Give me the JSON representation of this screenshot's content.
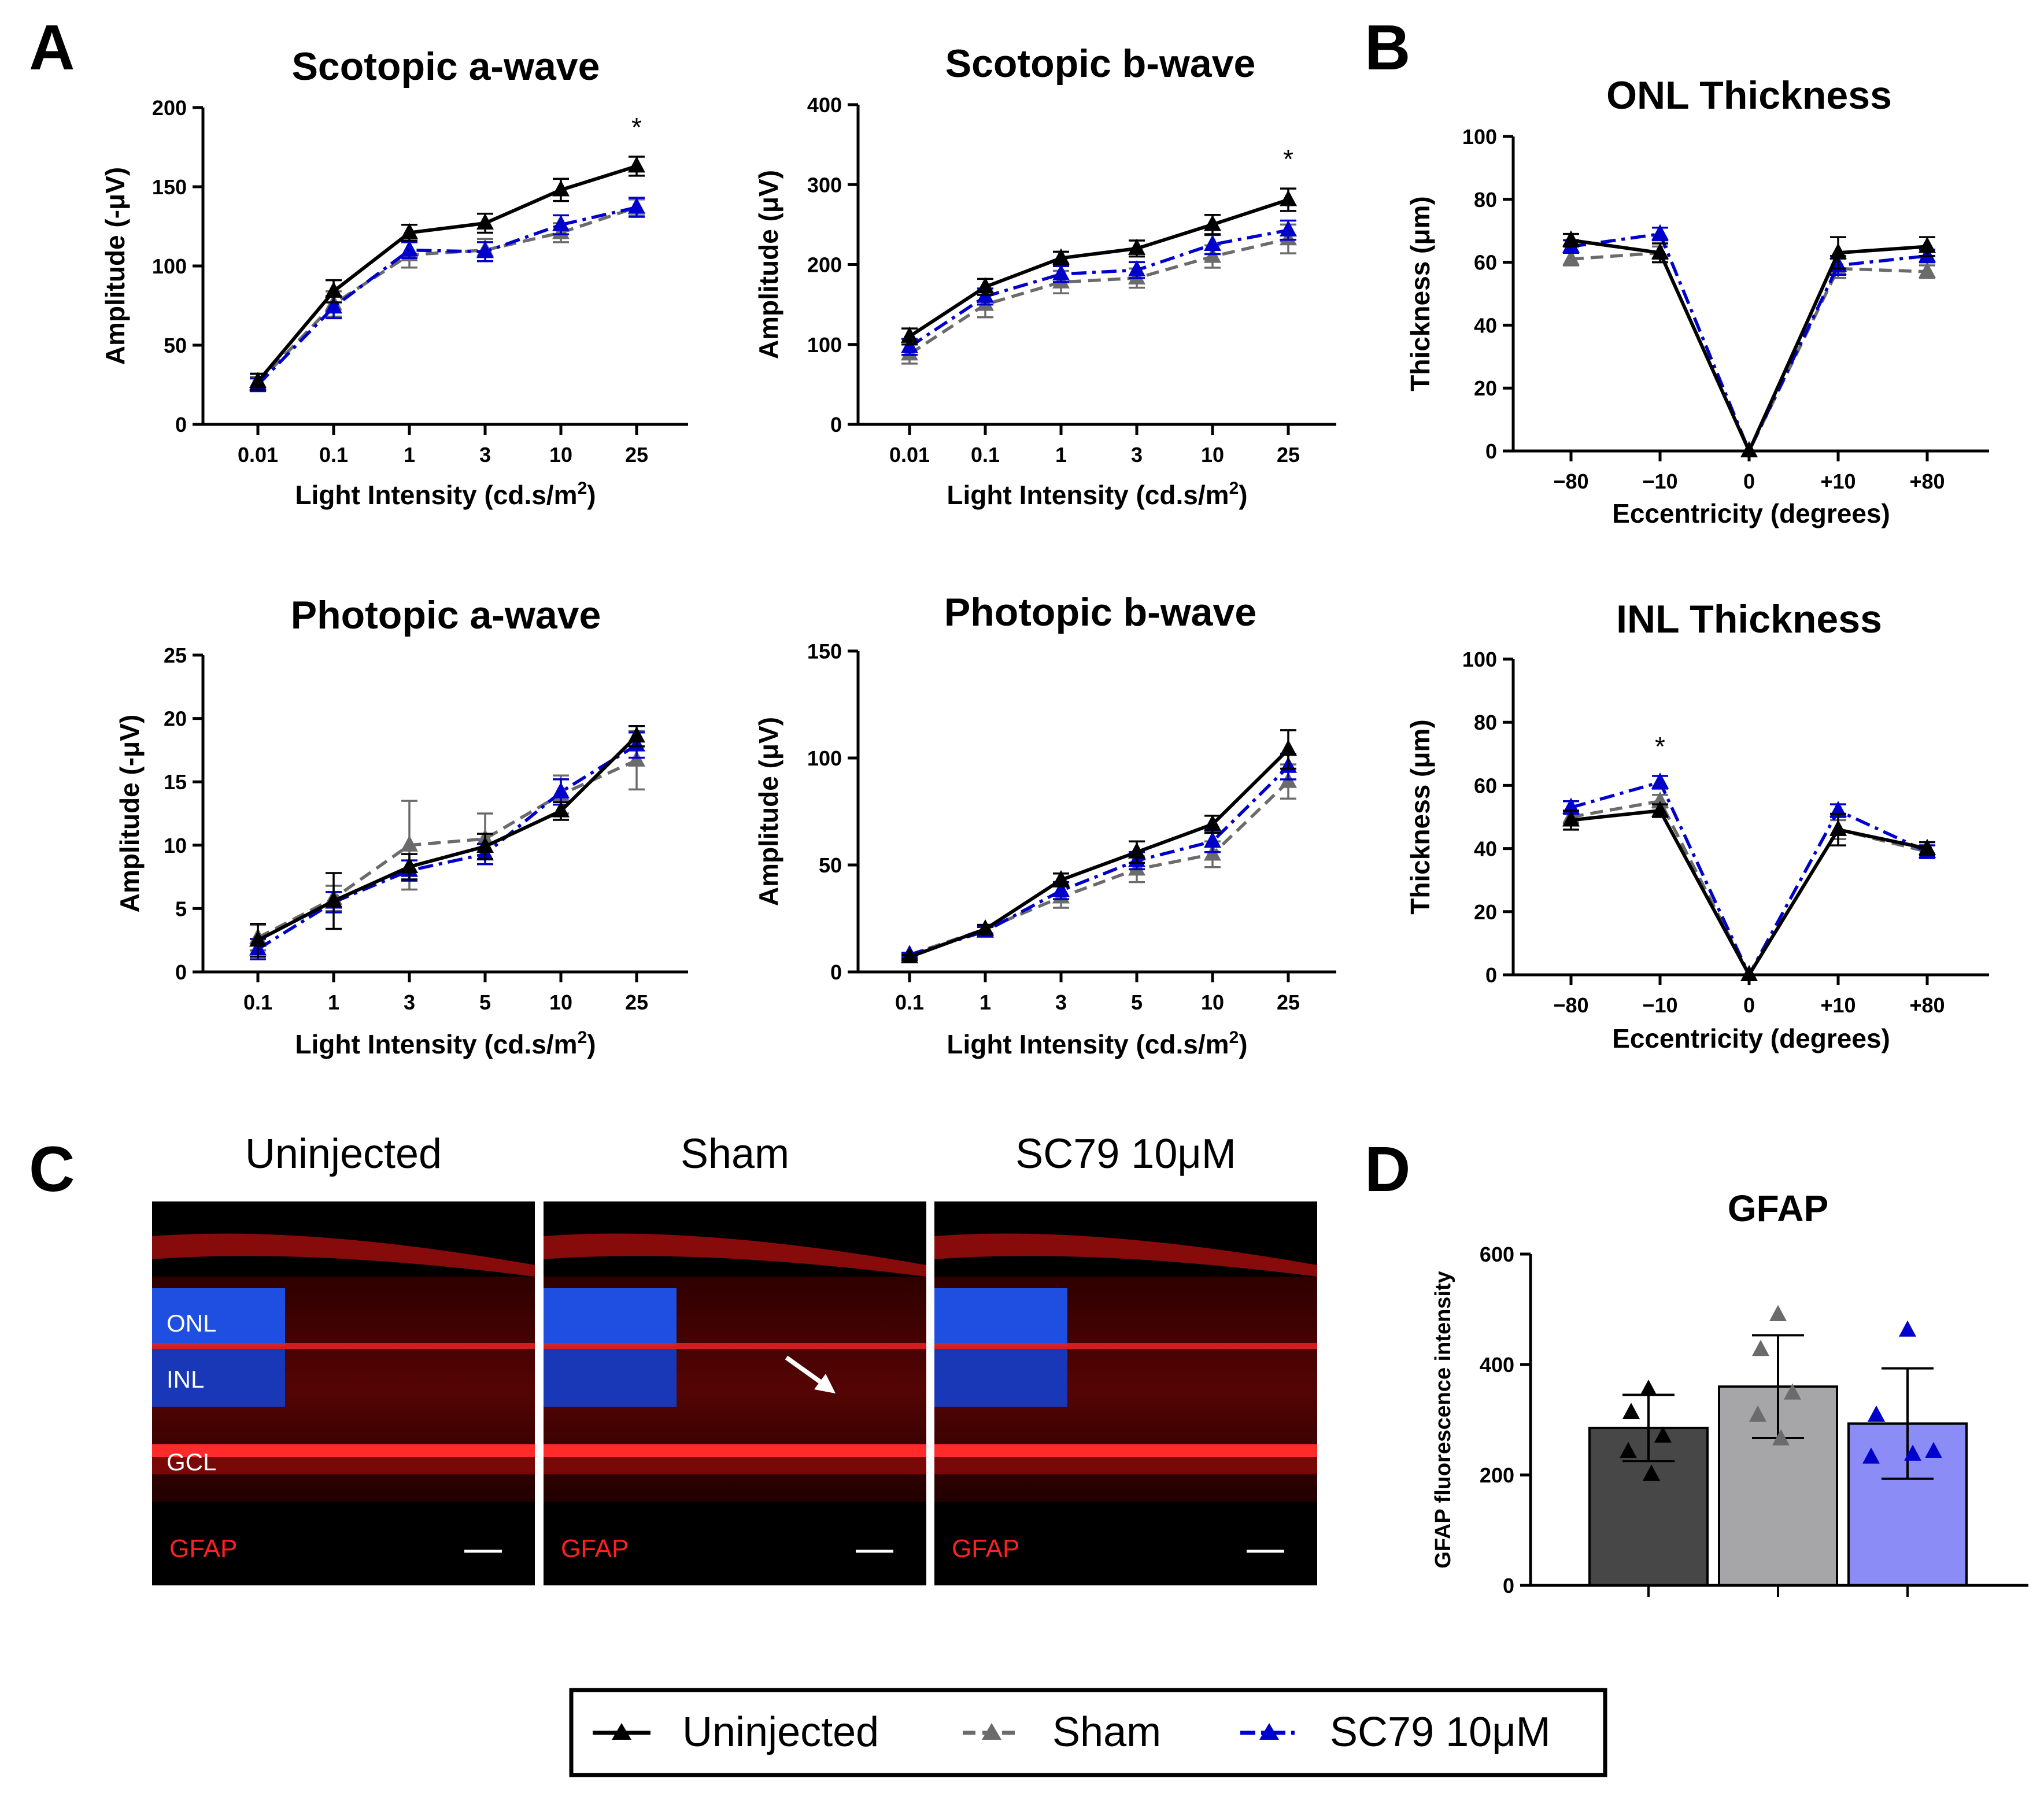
{
  "panel_letters": [
    "A",
    "B",
    "C",
    "D"
  ],
  "colors": {
    "uninjected": "#000000",
    "sham": "#6b6b6b",
    "sc79": "#0000cc",
    "bar_uninjected": "#474747",
    "bar_sham": "#a6a6a8",
    "bar_sc79": "#8c8cf7"
  },
  "legend": {
    "items": [
      "Uninjected",
      "Sham",
      "SC79 10μM"
    ]
  },
  "chart_data": [
    {
      "type": "line",
      "title": "Scotopic a-wave",
      "xlabel": "Light Intensity (cd.s/m",
      "xlabel_sup": "2",
      "xlabel_end": ")",
      "ylabel": "Amplitude (-μV)",
      "categories": [
        "0.01",
        "0.1",
        "1",
        "3",
        "10",
        "25"
      ],
      "ylim": [
        0,
        200
      ],
      "yticks": [
        0,
        50,
        100,
        150,
        200
      ],
      "annotation": {
        "text": "*",
        "index": 5
      },
      "series": [
        {
          "name": "Uninjected",
          "values": [
            27,
            84,
            121,
            127,
            148,
            163
          ],
          "err": [
            5,
            7,
            5,
            6,
            7,
            6
          ]
        },
        {
          "name": "Sham",
          "values": [
            26,
            76,
            107,
            110,
            121,
            137
          ],
          "err": [
            4,
            8,
            8,
            7,
            6,
            5
          ]
        },
        {
          "name": "SC79 10μM",
          "values": [
            25,
            74,
            110,
            109,
            126,
            137
          ],
          "err": [
            4,
            7,
            5,
            6,
            6,
            6
          ]
        }
      ]
    },
    {
      "type": "line",
      "title": "Scotopic b-wave",
      "xlabel": "Light Intensity (cd.s/m",
      "xlabel_sup": "2",
      "xlabel_end": ")",
      "ylabel": "Amplitude (μV)",
      "categories": [
        "0.01",
        "0.1",
        "1",
        "3",
        "10",
        "25"
      ],
      "ylim": [
        0,
        400
      ],
      "yticks": [
        0,
        100,
        200,
        300,
        400
      ],
      "annotation": {
        "text": "*",
        "index": 5
      },
      "series": [
        {
          "name": "Uninjected",
          "values": [
            110,
            172,
            208,
            220,
            250,
            281
          ],
          "err": [
            10,
            10,
            8,
            10,
            12,
            14
          ]
        },
        {
          "name": "Sham",
          "values": [
            88,
            150,
            178,
            183,
            210,
            232
          ],
          "err": [
            12,
            16,
            14,
            12,
            14,
            18
          ]
        },
        {
          "name": "SC79 10μM",
          "values": [
            97,
            160,
            188,
            193,
            225,
            243
          ],
          "err": [
            10,
            10,
            10,
            10,
            12,
            12
          ]
        }
      ]
    },
    {
      "type": "line",
      "title": "ONL Thickness",
      "xlabel": "Eccentricity (degrees)",
      "ylabel": "Thickness (μm)",
      "categories": [
        "−80",
        "−10",
        "0",
        "+10",
        "+80"
      ],
      "ylim": [
        0,
        100
      ],
      "yticks": [
        0,
        20,
        40,
        60,
        80,
        100
      ],
      "series": [
        {
          "name": "Uninjected",
          "values": [
            67,
            63,
            0,
            63,
            65
          ],
          "err": [
            2,
            3,
            0,
            5,
            3
          ]
        },
        {
          "name": "Sham",
          "values": [
            61,
            63,
            0,
            58,
            57
          ],
          "err": [
            2,
            2,
            0,
            3,
            2
          ]
        },
        {
          "name": "SC79 10μM",
          "values": [
            65,
            69,
            0,
            59,
            62
          ],
          "err": [
            2,
            2,
            0,
            3,
            2
          ]
        }
      ]
    },
    {
      "type": "line",
      "title": "Photopic a-wave",
      "xlabel": "Light Intensity (cd.s/m",
      "xlabel_sup": "2",
      "xlabel_end": ")",
      "ylabel": "Amplitude (-μV)",
      "categories": [
        "0.1",
        "1",
        "3",
        "5",
        "10",
        "25"
      ],
      "ylim": [
        0,
        25
      ],
      "yticks": [
        0,
        5,
        10,
        15,
        20,
        25
      ],
      "series": [
        {
          "name": "Uninjected",
          "values": [
            2.5,
            5.6,
            8.3,
            9.9,
            12.7,
            18.6
          ],
          "err": [
            1.3,
            2.2,
            1,
            1,
            0.7,
            0.8
          ]
        },
        {
          "name": "Sham",
          "values": [
            2.7,
            5.8,
            10,
            10.5,
            14,
            16.7
          ],
          "err": [
            1,
            1,
            3.5,
            2,
            1.5,
            2.3
          ]
        },
        {
          "name": "SC79 10μM",
          "values": [
            1.8,
            5.5,
            8,
            9.3,
            14.2,
            17.9
          ],
          "err": [
            0.8,
            0.8,
            0.8,
            0.8,
            1,
            1
          ]
        }
      ]
    },
    {
      "type": "line",
      "title": "Photopic b-wave",
      "xlabel": "Light Intensity (cd.s/m",
      "xlabel_sup": "2",
      "xlabel_end": ")",
      "ylabel": "Amplitude (μV)",
      "categories": [
        "0.1",
        "1",
        "3",
        "5",
        "10",
        "25"
      ],
      "ylim": [
        0,
        150
      ],
      "yticks": [
        0,
        50,
        100,
        150
      ],
      "series": [
        {
          "name": "Uninjected",
          "values": [
            7,
            20,
            43,
            56,
            69,
            104
          ],
          "err": [
            1,
            2,
            3,
            5,
            4,
            9
          ]
        },
        {
          "name": "Sham",
          "values": [
            8,
            20,
            35,
            48,
            55,
            89
          ],
          "err": [
            1,
            2,
            5,
            6,
            6,
            8
          ]
        },
        {
          "name": "SC79 10μM",
          "values": [
            8,
            19,
            38,
            52,
            61,
            96
          ],
          "err": [
            1,
            2,
            4,
            4,
            5,
            6
          ]
        }
      ]
    },
    {
      "type": "line",
      "title": "INL Thickness",
      "xlabel": "Eccentricity (degrees)",
      "ylabel": "Thickness (μm)",
      "categories": [
        "−80",
        "−10",
        "0",
        "+10",
        "+80"
      ],
      "ylim": [
        0,
        100
      ],
      "yticks": [
        0,
        20,
        40,
        60,
        80,
        100
      ],
      "annotation": {
        "text": "*",
        "index": 1
      },
      "series": [
        {
          "name": "Uninjected",
          "values": [
            49,
            52,
            0,
            46,
            40
          ],
          "err": [
            3,
            2,
            0,
            5,
            2
          ]
        },
        {
          "name": "Sham",
          "values": [
            50,
            55,
            0,
            46,
            39
          ],
          "err": [
            2,
            2,
            0,
            3,
            2
          ]
        },
        {
          "name": "SC79 10μM",
          "values": [
            53,
            61,
            0,
            52,
            39
          ],
          "err": [
            2,
            2,
            0,
            2,
            2
          ]
        }
      ]
    },
    {
      "type": "bar",
      "title": "GFAP",
      "ylabel": "GFAP fluorescence intensity",
      "categories": [
        "Uninjected",
        "Sham",
        "SC79 10μM"
      ],
      "ylim": [
        0,
        600
      ],
      "yticks": [
        0,
        200,
        400,
        600
      ],
      "values": [
        285,
        360,
        293
      ],
      "err": [
        60,
        93,
        100
      ],
      "points": [
        [
          355,
          313,
          270,
          242,
          201
        ],
        [
          490,
          427,
          348,
          308,
          265
        ],
        [
          462,
          308,
          242,
          232,
          237
        ]
      ]
    }
  ],
  "micrographs": {
    "titles": [
      "Uninjected",
      "Sham",
      "SC79 10μM"
    ],
    "layer_labels": [
      "ONL",
      "INL",
      "GCL"
    ],
    "stain_label": "GFAP"
  }
}
